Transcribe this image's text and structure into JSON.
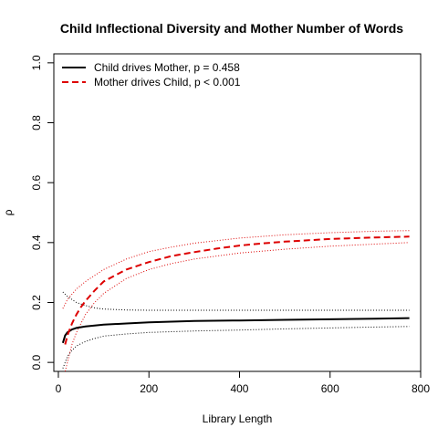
{
  "chart_data": {
    "type": "line",
    "title": "Child Inflectional Diversity and Mother Number of Words",
    "xlabel": "Library Length",
    "ylabel": "ρ",
    "xlim": [
      -10,
      800
    ],
    "ylim": [
      -0.03,
      1.03
    ],
    "x_ticks": [
      0,
      200,
      400,
      600,
      800
    ],
    "y_ticks": [
      0.0,
      0.2,
      0.4,
      0.6,
      0.8,
      1.0
    ],
    "x_tick_labels": [
      "0",
      "200",
      "400",
      "600",
      "800"
    ],
    "y_tick_labels": [
      "0.0",
      "0.2",
      "0.4",
      "0.6",
      "0.8",
      "1.0"
    ],
    "grid": false,
    "legend_position": "top-left",
    "series": [
      {
        "name": "Child drives Mother, p = 0.458",
        "color": "#000000",
        "style": "solid",
        "x": [
          10,
          15,
          20,
          30,
          40,
          60,
          80,
          100,
          150,
          200,
          250,
          300,
          400,
          500,
          600,
          700,
          775
        ],
        "y": [
          0.065,
          0.09,
          0.1,
          0.11,
          0.115,
          0.12,
          0.123,
          0.126,
          0.13,
          0.134,
          0.136,
          0.138,
          0.14,
          0.142,
          0.144,
          0.146,
          0.148
        ]
      },
      {
        "name": "Mother drives Child, p < 0.001",
        "color": "#dd0000",
        "style": "dashed",
        "x": [
          15,
          20,
          30,
          40,
          50,
          60,
          80,
          100,
          125,
          150,
          200,
          250,
          300,
          350,
          400,
          450,
          500,
          600,
          700,
          775
        ],
        "y": [
          0.06,
          0.09,
          0.13,
          0.16,
          0.185,
          0.205,
          0.24,
          0.27,
          0.29,
          0.31,
          0.335,
          0.355,
          0.368,
          0.38,
          0.39,
          0.397,
          0.403,
          0.412,
          0.417,
          0.42
        ]
      }
    ],
    "bands": [
      {
        "color": "#000000",
        "upper": {
          "x": [
            10,
            20,
            40,
            60,
            80,
            100,
            150,
            200,
            300,
            400,
            500,
            600,
            700,
            775
          ],
          "y": [
            0.235,
            0.22,
            0.2,
            0.19,
            0.182,
            0.178,
            0.175,
            0.174,
            0.174,
            0.174,
            0.174,
            0.174,
            0.174,
            0.174
          ]
        },
        "lower": {
          "x": [
            10,
            15,
            20,
            30,
            40,
            60,
            80,
            100,
            150,
            200,
            300,
            400,
            500,
            600,
            700,
            775
          ],
          "y": [
            -0.02,
            0.0,
            0.02,
            0.04,
            0.055,
            0.07,
            0.08,
            0.088,
            0.095,
            0.1,
            0.105,
            0.108,
            0.112,
            0.115,
            0.118,
            0.12
          ]
        }
      },
      {
        "color": "#dd0000",
        "upper": {
          "x": [
            10,
            20,
            40,
            60,
            80,
            100,
            150,
            200,
            250,
            300,
            400,
            500,
            600,
            700,
            775
          ],
          "y": [
            0.18,
            0.21,
            0.245,
            0.27,
            0.29,
            0.31,
            0.345,
            0.37,
            0.385,
            0.398,
            0.415,
            0.426,
            0.433,
            0.438,
            0.44
          ]
        },
        "lower": {
          "x": [
            15,
            20,
            30,
            40,
            60,
            80,
            100,
            150,
            200,
            250,
            300,
            400,
            500,
            600,
            700,
            775
          ],
          "y": [
            -0.03,
            0.0,
            0.06,
            0.1,
            0.16,
            0.2,
            0.23,
            0.28,
            0.31,
            0.33,
            0.345,
            0.365,
            0.378,
            0.388,
            0.395,
            0.4
          ]
        }
      }
    ]
  }
}
